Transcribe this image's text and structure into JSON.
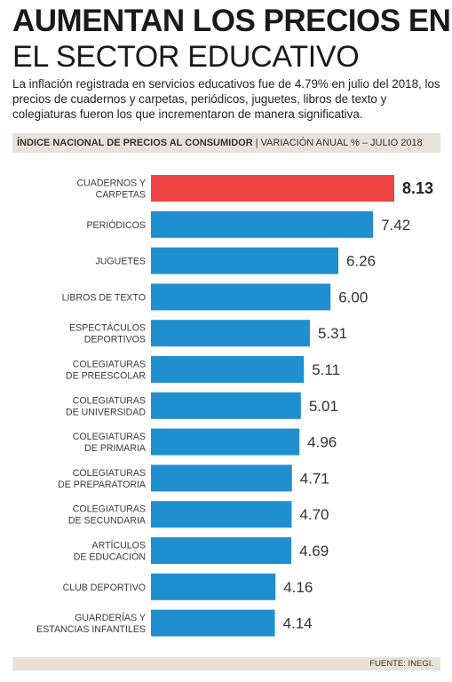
{
  "header": {
    "title_line1": "AUMENTAN LOS PRECIOS EN",
    "title_line2": "EL SECTOR EDUCATIVO",
    "intro": "La inflación registrada en servicios educativos fue de 4.79% en julio del 2018, los precios de cuadernos y carpetas, periódicos, juguetes, libros de texto y colegiaturas fueron los que incrementaron de manera significativa."
  },
  "subtitle": {
    "bold": "ÍNDICE NACIONAL DE PRECIOS AL CONSUMIDOR",
    "separator": "|",
    "normal": "VARIACIÓN ANUAL % – JULIO 2018"
  },
  "footer": {
    "source": "FUENTE: INEGI."
  },
  "colors": {
    "bar": "#1f8fd0",
    "highlight": "#ee4444",
    "band": "#e9e2d9"
  },
  "chart_data": {
    "type": "bar",
    "orientation": "horizontal",
    "categories": [
      [
        "CUADERNOS Y",
        "CARPETAS"
      ],
      [
        "PERIÓDICOS"
      ],
      [
        "JUGUETES"
      ],
      [
        "LIBROS DE TEXTO"
      ],
      [
        "ESPECTÁCULOS",
        "DEPORTIVOS"
      ],
      [
        "COLEGIATURAS",
        "DE PREESCOLAR"
      ],
      [
        "COLEGIATURAS",
        "DE UNIVERSIDAD"
      ],
      [
        "COLEGIATURAS",
        "DE PRIMARIA"
      ],
      [
        "COLEGIATURAS",
        "DE PREPARATORIA"
      ],
      [
        "COLEGIATURAS",
        "DE SECUNDARIA"
      ],
      [
        "ARTÍCULOS",
        "DE EDUCACIÓN"
      ],
      [
        "CLUB DEPORTIVO"
      ],
      [
        "GUARDERÍAS Y",
        "ESTANCIAS INFANTILES"
      ]
    ],
    "values": [
      8.13,
      7.42,
      6.26,
      6.0,
      5.31,
      5.11,
      5.01,
      4.96,
      4.71,
      4.7,
      4.69,
      4.16,
      4.14
    ],
    "value_labels": [
      "8.13",
      "7.42",
      "6.26",
      "6.00",
      "5.31",
      "5.11",
      "5.01",
      "4.96",
      "4.71",
      "4.70",
      "4.69",
      "4.16",
      "4.14"
    ],
    "highlight_index": 0,
    "xlim": [
      0,
      8.13
    ],
    "grid": false,
    "xlabel": "",
    "ylabel": ""
  }
}
